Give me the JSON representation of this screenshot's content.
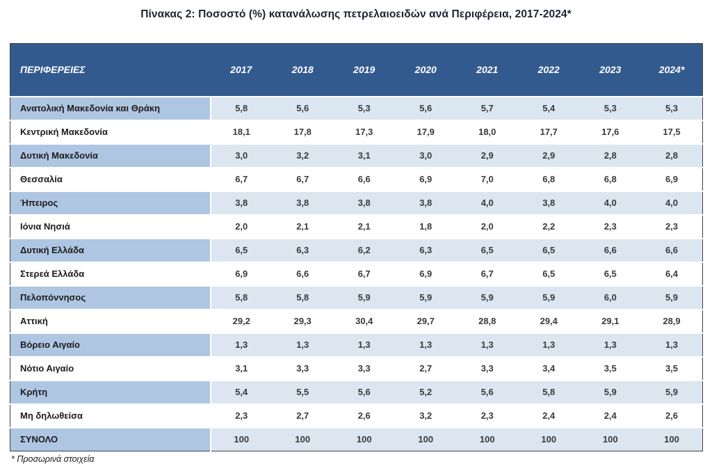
{
  "title": "Πίνακας 2: Ποσοστό (%) κατανάλωσης πετρελαιοειδών ανά Περιφέρεια, 2017-2024*",
  "footnote": "* Προσωρινά στοιχεία",
  "colors": {
    "header_bg": "#335A8E",
    "header_text": "#FFFFFF",
    "band_region_bg": "#AFC6E3",
    "band_value_bg": "#DCE6F1",
    "table_border": "#3F3F3F"
  },
  "table": {
    "header": {
      "region_col": "ΠΕΡΙΦΕΡΕΙΕΣ",
      "years": [
        "2017",
        "2018",
        "2019",
        "2020",
        "2021",
        "2022",
        "2023",
        "2024*"
      ]
    },
    "rows": [
      {
        "region": "Ανατολική Μακεδονία και Θράκη",
        "values": [
          "5,8",
          "5,6",
          "5,3",
          "5,6",
          "5,7",
          "5,4",
          "5,3",
          "5,3"
        ]
      },
      {
        "region": "Κεντρική Μακεδονία",
        "values": [
          "18,1",
          "17,8",
          "17,3",
          "17,9",
          "18,0",
          "17,7",
          "17,6",
          "17,5"
        ]
      },
      {
        "region": "Δυτική Μακεδονία",
        "values": [
          "3,0",
          "3,2",
          "3,1",
          "3,0",
          "2,9",
          "2,9",
          "2,8",
          "2,8"
        ]
      },
      {
        "region": "Θεσσαλία",
        "values": [
          "6,7",
          "6,7",
          "6,6",
          "6,9",
          "7,0",
          "6,8",
          "6,8",
          "6,9"
        ]
      },
      {
        "region": "Ήπειρος",
        "values": [
          "3,8",
          "3,8",
          "3,8",
          "3,8",
          "4,0",
          "3,8",
          "4,0",
          "4,0"
        ]
      },
      {
        "region": "Ιόνια Νησιά",
        "values": [
          "2,0",
          "2,1",
          "2,1",
          "1,8",
          "2,0",
          "2,2",
          "2,3",
          "2,3"
        ]
      },
      {
        "region": "Δυτική Ελλάδα",
        "values": [
          "6,5",
          "6,3",
          "6,2",
          "6,3",
          "6,5",
          "6,5",
          "6,6",
          "6,6"
        ]
      },
      {
        "region": "Στερεά Ελλάδα",
        "values": [
          "6,9",
          "6,6",
          "6,7",
          "6,9",
          "6,7",
          "6,5",
          "6,5",
          "6,4"
        ]
      },
      {
        "region": "Πελοπόννησος",
        "values": [
          "5,8",
          "5,8",
          "5,9",
          "5,9",
          "5,9",
          "5,9",
          "6,0",
          "5,9"
        ]
      },
      {
        "region": "Αττική",
        "values": [
          "29,2",
          "29,3",
          "30,4",
          "29,7",
          "28,8",
          "29,4",
          "29,1",
          "28,9"
        ]
      },
      {
        "region": "Βόρειο Αιγαίο",
        "values": [
          "1,3",
          "1,3",
          "1,3",
          "1,3",
          "1,3",
          "1,3",
          "1,3",
          "1,3"
        ]
      },
      {
        "region": "Νότιο Αιγαίο",
        "values": [
          "3,1",
          "3,3",
          "3,3",
          "2,7",
          "3,3",
          "3,4",
          "3,5",
          "3,5"
        ]
      },
      {
        "region": "Κρήτη",
        "values": [
          "5,4",
          "5,5",
          "5,6",
          "5,2",
          "5,6",
          "5,8",
          "5,9",
          "5,9"
        ]
      },
      {
        "region": "Μη δηλωθείσα",
        "values": [
          "2,3",
          "2,7",
          "2,6",
          "3,2",
          "2,3",
          "2,4",
          "2,4",
          "2,6"
        ]
      },
      {
        "region": "ΣΥΝΟΛΟ",
        "values": [
          "100",
          "100",
          "100",
          "100",
          "100",
          "100",
          "100",
          "100"
        ]
      }
    ]
  }
}
